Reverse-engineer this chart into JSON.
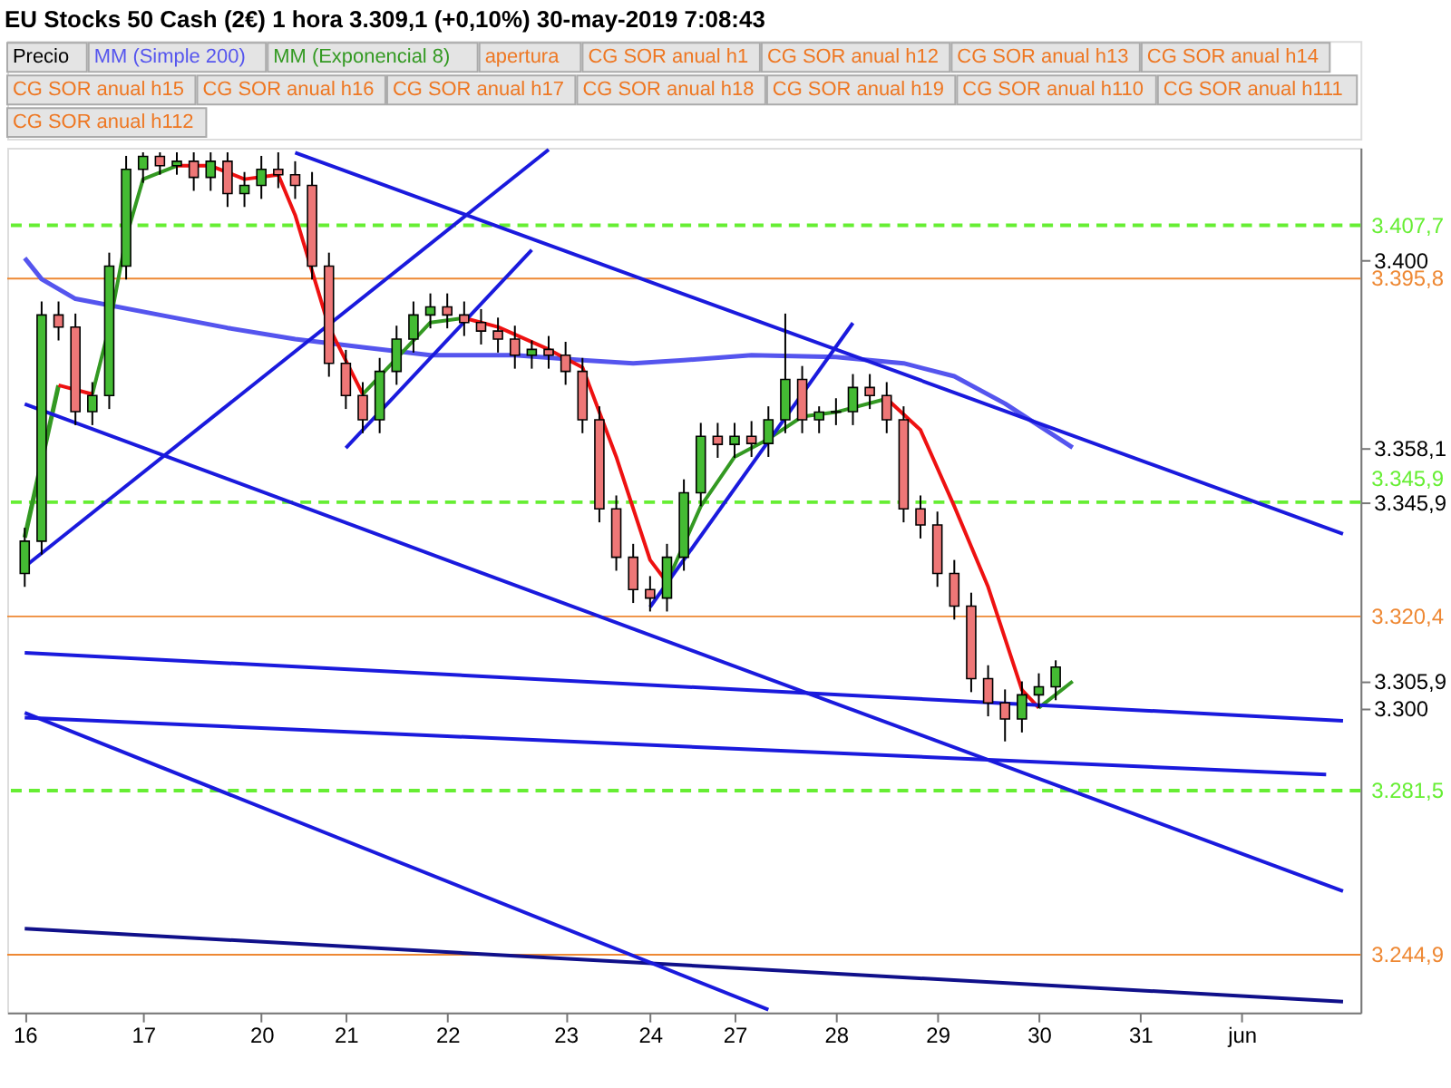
{
  "chart_data": {
    "type": "candlestick",
    "title": "EU Stocks 50 Cash (2€)   1 hora   3.309,1 (+0,10%)   30-may-2019 7:08:43",
    "ylim": [
      3232,
      3425
    ],
    "yticks": [
      {
        "value": 3400,
        "label": "3.400"
      },
      {
        "value": 3358.1,
        "label": "3.358,1"
      },
      {
        "value": 3345.9,
        "label": "3.345,9"
      },
      {
        "value": 3305.9,
        "label": "3.305,9"
      },
      {
        "value": 3300,
        "label": "3.300"
      }
    ],
    "grid": false,
    "legend": "top",
    "categories": [
      "16",
      null,
      null,
      null,
      null,
      null,
      null,
      "17",
      null,
      null,
      null,
      null,
      null,
      null,
      "20",
      null,
      null,
      null,
      null,
      "21",
      null,
      null,
      null,
      null,
      null,
      "22",
      null,
      null,
      null,
      null,
      null,
      null,
      "23",
      null,
      null,
      null,
      null,
      "24",
      null,
      null,
      null,
      null,
      "27",
      null,
      null,
      null,
      null,
      null,
      "28",
      null,
      null,
      null,
      null,
      null,
      "29",
      null,
      null,
      null,
      null,
      null,
      "30",
      null,
      null,
      null,
      null,
      null,
      "31",
      null,
      null,
      null,
      null,
      null,
      "jun",
      null,
      null,
      null,
      null,
      null,
      null
    ],
    "ohlc": [
      [
        3330,
        3340.2,
        3327,
        3337.2
      ],
      [
        3337.2,
        3390.7,
        3334.2,
        3387.7
      ],
      [
        3387.7,
        3390.7,
        3382,
        3385
      ],
      [
        3385,
        3388,
        3363.1,
        3366.1
      ],
      [
        3366.1,
        3372.7,
        3363.1,
        3369.7
      ],
      [
        3369.7,
        3401.6,
        3366.7,
        3398.6
      ],
      [
        3398.6,
        3423.2,
        3395.6,
        3420.2
      ],
      [
        3420.2,
        3424,
        3417.2,
        3423.1
      ],
      [
        3423.1,
        3424,
        3419,
        3421
      ],
      [
        3421,
        3424,
        3419,
        3422
      ],
      [
        3422,
        3424,
        3415.4,
        3418.4
      ],
      [
        3418.4,
        3424,
        3415.4,
        3422
      ],
      [
        3422,
        3424,
        3411.8,
        3414.8
      ],
      [
        3414.8,
        3419.6,
        3411.8,
        3416.6
      ],
      [
        3416.6,
        3423.2,
        3413.6,
        3420.2
      ],
      [
        3420.2,
        3424,
        3416,
        3419
      ],
      [
        3419,
        3422,
        3413.6,
        3416.6
      ],
      [
        3416.6,
        3419.6,
        3395.6,
        3398.6
      ],
      [
        3398.6,
        3401.6,
        3373.9,
        3376.9
      ],
      [
        3376.9,
        3379.9,
        3366.7,
        3369.7
      ],
      [
        3369.7,
        3372.7,
        3361.3,
        3364.3
      ],
      [
        3364.3,
        3378.1,
        3361.3,
        3375.1
      ],
      [
        3375.1,
        3385.3,
        3372.1,
        3382.3
      ],
      [
        3382.3,
        3390.7,
        3379.3,
        3387.7
      ],
      [
        3387.7,
        3392.5,
        3384.7,
        3389.5
      ],
      [
        3389.5,
        3392.5,
        3384.7,
        3387.7
      ],
      [
        3387.7,
        3390.7,
        3383,
        3386
      ],
      [
        3386,
        3389,
        3381.1,
        3384.1
      ],
      [
        3384.1,
        3387.1,
        3379.3,
        3382.3
      ],
      [
        3382.3,
        3385.3,
        3375.7,
        3378.7
      ],
      [
        3378.7,
        3382,
        3375.7,
        3380
      ],
      [
        3380,
        3383,
        3375.7,
        3378.7
      ],
      [
        3378.7,
        3381.7,
        3372.1,
        3375.1
      ],
      [
        3375.1,
        3378.1,
        3361.3,
        3364.3
      ],
      [
        3364.3,
        3367.3,
        3341.4,
        3344.4
      ],
      [
        3344.4,
        3347.4,
        3330.6,
        3333.6
      ],
      [
        3333.6,
        3336.6,
        3323.4,
        3326.4
      ],
      [
        3326.4,
        3329.4,
        3321.5,
        3324.5
      ],
      [
        3324.5,
        3336.6,
        3321.5,
        3333.6
      ],
      [
        3333.6,
        3351,
        3330.6,
        3348
      ],
      [
        3348,
        3363.6,
        3345,
        3360.6
      ],
      [
        3360.6,
        3363.6,
        3355.8,
        3358.8
      ],
      [
        3358.8,
        3363.6,
        3355.8,
        3360.6
      ],
      [
        3360.6,
        3364,
        3356,
        3359
      ],
      [
        3359,
        3367.3,
        3356,
        3364.3
      ],
      [
        3364.3,
        3388,
        3361.3,
        3373.3
      ],
      [
        3373.3,
        3376.3,
        3361.3,
        3364.3
      ],
      [
        3364.3,
        3367.3,
        3361.3,
        3366
      ],
      [
        3366,
        3369.1,
        3363.1,
        3366.1
      ],
      [
        3366.1,
        3374.5,
        3363.1,
        3371.5
      ],
      [
        3371.5,
        3374.5,
        3366.7,
        3369.7
      ],
      [
        3369.7,
        3372.7,
        3361.3,
        3364.3
      ],
      [
        3364.3,
        3367.3,
        3341.4,
        3344.4
      ],
      [
        3344.4,
        3347.4,
        3337.8,
        3340.8
      ],
      [
        3340.8,
        3343.8,
        3327,
        3330
      ],
      [
        3330,
        3333,
        3319.7,
        3322.7
      ],
      [
        3322.7,
        3325.7,
        3303.5,
        3306.5
      ],
      [
        3306.5,
        3309.5,
        3298.1,
        3301.1
      ],
      [
        3301.1,
        3304.1,
        3292.5,
        3297.5
      ],
      [
        3297.5,
        3305.9,
        3294.5,
        3302.9
      ],
      [
        3302.9,
        3307.7,
        3299.9,
        3304.7
      ],
      [
        3304.7,
        3310.6,
        3301.7,
        3309.1
      ],
      null,
      null,
      null,
      null,
      null,
      null,
      null,
      null,
      null,
      null,
      null,
      null,
      null,
      null,
      null,
      null,
      null
    ],
    "series": [
      {
        "name": "MM (Simple 200)",
        "type": "line",
        "color": "#5555ee",
        "values": [
          3400.4,
          3395.7,
          null,
          3391.3,
          null,
          null,
          null,
          null,
          3387.7,
          null,
          null,
          null,
          3384.8,
          null,
          null,
          null,
          3382.3,
          null,
          null,
          null,
          3380.5,
          null,
          null,
          null,
          3378.7,
          null,
          null,
          null,
          null,
          3378.7,
          null,
          null,
          null,
          3377.6,
          null,
          null,
          3376.9,
          null,
          null,
          3377.6,
          null,
          null,
          null,
          3378.7,
          null,
          null,
          null,
          null,
          3378.3,
          null,
          null,
          null,
          3376.9,
          null,
          null,
          3374.0,
          null,
          null,
          3367.9,
          null,
          null,
          null,
          3358.1,
          null,
          null,
          null,
          null,
          null,
          null,
          null,
          null,
          null,
          null,
          null,
          null,
          null,
          null,
          null,
          null
        ]
      },
      {
        "name": "MM (Exponencial 8)",
        "type": "line",
        "color": "#339922",
        "values": [
          3338,
          3355,
          3372,
          null,
          null,
          null,
          null,
          null,
          null,
          null,
          null,
          null,
          null,
          null,
          null,
          null,
          null,
          null,
          null,
          null,
          null,
          null,
          null,
          null,
          null,
          null,
          null,
          null,
          null,
          null,
          null,
          null,
          null,
          null,
          null,
          null,
          null,
          null,
          null,
          null,
          null,
          null,
          null,
          null,
          null,
          null,
          null,
          null,
          null,
          null,
          null,
          null,
          null,
          null,
          null,
          null,
          null,
          null,
          null,
          null,
          null,
          null,
          null,
          null,
          null,
          null,
          null,
          null,
          null,
          null,
          null,
          null,
          null,
          null,
          null,
          null,
          null,
          null,
          null
        ]
      },
      {
        "type": "line",
        "color": "#339922",
        "values": [
          null,
          null,
          null,
          null,
          3370,
          3385,
          3405,
          3418,
          null,
          3421,
          null,
          null,
          null,
          null,
          null,
          null,
          null,
          null,
          null,
          null,
          null,
          null,
          null,
          null,
          null,
          null,
          null,
          null,
          null,
          null,
          null,
          null,
          null,
          null,
          null,
          null,
          null,
          null,
          null,
          null,
          null,
          null,
          null,
          null,
          null,
          null,
          null,
          null,
          null,
          null,
          null,
          null,
          null,
          null,
          null,
          null,
          null,
          null,
          null,
          null,
          null,
          null,
          null,
          null,
          null,
          null,
          null,
          null,
          null,
          null,
          null,
          null,
          null,
          null,
          null,
          null,
          null,
          null,
          null
        ]
      },
      {
        "type": "line",
        "color": "#339922",
        "values": [
          null,
          null,
          null,
          null,
          null,
          null,
          null,
          null,
          null,
          null,
          null,
          null,
          null,
          null,
          null,
          null,
          null,
          null,
          null,
          null,
          3370,
          null,
          3378,
          null,
          3386,
          null,
          3387,
          null,
          null,
          null,
          null,
          null,
          null,
          null,
          null,
          null,
          null,
          null,
          null,
          null,
          null,
          null,
          null,
          null,
          null,
          null,
          null,
          null,
          null,
          null,
          null,
          null,
          null,
          null,
          null,
          null,
          null,
          null,
          null,
          null,
          null,
          null,
          null,
          null,
          null,
          null,
          null,
          null,
          null,
          null,
          null,
          null,
          null,
          null,
          null,
          null,
          null,
          null,
          null
        ]
      },
      {
        "type": "line",
        "color": "#339922",
        "values": [
          null,
          null,
          null,
          null,
          null,
          null,
          null,
          null,
          null,
          null,
          null,
          null,
          null,
          null,
          null,
          null,
          null,
          null,
          null,
          null,
          null,
          null,
          null,
          null,
          null,
          null,
          null,
          null,
          null,
          null,
          null,
          null,
          null,
          null,
          null,
          null,
          null,
          null,
          3328,
          null,
          3345,
          null,
          3356,
          null,
          3360,
          null,
          3365,
          null,
          3366,
          null,
          null,
          3369,
          null,
          null,
          null,
          null,
          null,
          null,
          null,
          null,
          null,
          null,
          null,
          null,
          null,
          null,
          null,
          null,
          null,
          null,
          null,
          null,
          null,
          null,
          null,
          null,
          null,
          null,
          null
        ]
      },
      {
        "type": "line",
        "color": "#339922",
        "values": [
          null,
          null,
          null,
          null,
          null,
          null,
          null,
          null,
          null,
          null,
          null,
          null,
          null,
          null,
          null,
          null,
          null,
          null,
          null,
          null,
          null,
          null,
          null,
          null,
          null,
          null,
          null,
          null,
          null,
          null,
          null,
          null,
          null,
          null,
          null,
          null,
          null,
          null,
          null,
          null,
          null,
          null,
          null,
          null,
          null,
          null,
          null,
          null,
          null,
          null,
          null,
          null,
          null,
          null,
          null,
          null,
          null,
          null,
          null,
          null,
          3300,
          null,
          3305.9,
          null,
          null,
          null,
          null,
          null,
          null,
          null,
          null,
          null,
          null,
          null,
          null,
          null,
          null,
          null,
          null
        ]
      },
      {
        "type": "line",
        "color": "#ee1111",
        "values": [
          null,
          null,
          3372,
          null,
          3370,
          null,
          null,
          null,
          null,
          null,
          null,
          null,
          null,
          null,
          null,
          null,
          null,
          null,
          null,
          null,
          null,
          null,
          null,
          null,
          null,
          null,
          null,
          null,
          null,
          null,
          null,
          null,
          null,
          null,
          null,
          null,
          null,
          null,
          null,
          null,
          null,
          null,
          null,
          null,
          null,
          null,
          null,
          null,
          null,
          null,
          null,
          null,
          null,
          null,
          null,
          null,
          null,
          null,
          null,
          null,
          null,
          null,
          null,
          null,
          null,
          null,
          null,
          null,
          null,
          null,
          null,
          null,
          null,
          null,
          null,
          null,
          null,
          null,
          null
        ]
      },
      {
        "type": "line",
        "color": "#ee1111",
        "values": [
          null,
          null,
          null,
          null,
          null,
          null,
          null,
          null,
          null,
          3421,
          null,
          3421,
          null,
          3418,
          null,
          3419,
          3410,
          null,
          3385,
          null,
          3370,
          null,
          null,
          null,
          null,
          null,
          null,
          null,
          null,
          null,
          null,
          null,
          null,
          null,
          null,
          null,
          null,
          null,
          null,
          null,
          null,
          null,
          null,
          null,
          null,
          null,
          null,
          null,
          null,
          null,
          null,
          null,
          null,
          null,
          null,
          null,
          null,
          null,
          null,
          null,
          null,
          null,
          null,
          null,
          null,
          null,
          null,
          null,
          null,
          null,
          null,
          null,
          null,
          null,
          null,
          null,
          null,
          null,
          null
        ]
      },
      {
        "type": "line",
        "color": "#ee1111",
        "values": [
          null,
          null,
          null,
          null,
          null,
          null,
          null,
          null,
          null,
          null,
          null,
          null,
          null,
          null,
          null,
          null,
          null,
          null,
          null,
          null,
          null,
          null,
          null,
          null,
          null,
          null,
          3387,
          null,
          3385,
          null,
          null,
          3380,
          null,
          3376,
          null,
          3356,
          null,
          3333,
          3328,
          null,
          null,
          null,
          null,
          null,
          null,
          null,
          null,
          null,
          null,
          null,
          null,
          null,
          null,
          null,
          null,
          null,
          null,
          null,
          null,
          null,
          null,
          null,
          null,
          null,
          null,
          null,
          null,
          null,
          null,
          null,
          null,
          null,
          null,
          null,
          null,
          null,
          null,
          null,
          null
        ]
      },
      {
        "type": "line",
        "color": "#ee1111",
        "values": [
          null,
          null,
          null,
          null,
          null,
          null,
          null,
          null,
          null,
          null,
          null,
          null,
          null,
          null,
          null,
          null,
          null,
          null,
          null,
          null,
          null,
          null,
          null,
          null,
          null,
          null,
          null,
          null,
          null,
          null,
          null,
          null,
          null,
          null,
          null,
          null,
          null,
          null,
          null,
          null,
          null,
          null,
          null,
          null,
          null,
          null,
          null,
          null,
          null,
          null,
          null,
          3369,
          null,
          3362,
          null,
          3345,
          null,
          3327,
          null,
          3304,
          3300,
          null,
          null,
          null,
          null,
          null,
          null,
          null,
          null,
          null,
          null,
          null,
          null,
          null,
          null,
          null,
          null,
          null,
          null
        ]
      },
      {
        "type": "line",
        "color": "#1a1add",
        "values": [
          3367.8,
          null,
          null,
          null,
          null,
          null,
          null,
          null,
          null,
          null,
          null,
          null,
          null,
          null,
          null,
          null,
          null,
          null,
          null,
          null,
          null,
          null,
          null,
          null,
          null,
          null,
          null,
          null,
          null,
          null,
          null,
          null,
          null,
          null,
          null,
          null,
          null,
          null,
          null,
          null,
          null,
          null,
          null,
          null,
          null,
          null,
          null,
          null,
          null,
          null,
          null,
          null,
          null,
          null,
          null,
          null,
          null,
          null,
          null,
          null,
          null,
          null,
          null,
          null,
          null,
          null,
          null,
          null,
          null,
          null,
          null,
          null,
          null,
          null,
          null,
          null,
          null,
          null,
          3259.1
        ]
      },
      {
        "type": "line",
        "color": "#1a1add",
        "values": [
          null,
          null,
          null,
          null,
          null,
          null,
          null,
          null,
          null,
          null,
          null,
          null,
          null,
          null,
          null,
          null,
          3423.9,
          null,
          null,
          null,
          null,
          null,
          null,
          null,
          null,
          null,
          null,
          null,
          null,
          null,
          null,
          null,
          null,
          null,
          null,
          null,
          null,
          null,
          null,
          null,
          null,
          null,
          null,
          null,
          null,
          null,
          null,
          null,
          null,
          null,
          null,
          null,
          null,
          null,
          null,
          null,
          null,
          null,
          null,
          null,
          null,
          null,
          null,
          null,
          null,
          null,
          null,
          null,
          null,
          null,
          null,
          null,
          null,
          null,
          null,
          null,
          null,
          null,
          3338.8
        ]
      },
      {
        "type": "line",
        "color": "#1a1add",
        "values": [
          3312.3,
          null,
          null,
          null,
          null,
          null,
          null,
          null,
          null,
          null,
          null,
          null,
          null,
          null,
          null,
          null,
          null,
          null,
          null,
          null,
          null,
          null,
          null,
          null,
          null,
          null,
          null,
          null,
          null,
          null,
          null,
          null,
          null,
          null,
          null,
          null,
          null,
          null,
          null,
          null,
          null,
          null,
          null,
          null,
          null,
          null,
          null,
          null,
          null,
          null,
          null,
          null,
          null,
          null,
          null,
          null,
          null,
          null,
          null,
          null,
          null,
          null,
          null,
          null,
          null,
          null,
          null,
          null,
          null,
          null,
          null,
          null,
          null,
          null,
          null,
          null,
          null,
          null,
          3297.1
        ]
      },
      {
        "type": "line",
        "color": "#1a1add",
        "values": [
          3297.8,
          null,
          null,
          null,
          null,
          null,
          null,
          null,
          null,
          null,
          null,
          null,
          null,
          null,
          null,
          null,
          null,
          null,
          null,
          null,
          null,
          null,
          null,
          null,
          null,
          null,
          null,
          null,
          null,
          null,
          null,
          null,
          null,
          null,
          null,
          null,
          null,
          null,
          null,
          null,
          null,
          null,
          null,
          null,
          null,
          null,
          null,
          null,
          null,
          null,
          null,
          null,
          null,
          null,
          null,
          null,
          null,
          null,
          null,
          null,
          null,
          null,
          null,
          null,
          null,
          null,
          null,
          null,
          null,
          null,
          null,
          null,
          null,
          null,
          null,
          null,
          null,
          3285.1,
          null
        ]
      },
      {
        "type": "line",
        "color": "#10108a",
        "values": [
          3250.7,
          null,
          null,
          null,
          null,
          null,
          null,
          null,
          null,
          null,
          null,
          null,
          null,
          null,
          null,
          null,
          null,
          null,
          null,
          null,
          null,
          null,
          null,
          null,
          null,
          null,
          null,
          null,
          null,
          null,
          null,
          null,
          null,
          null,
          null,
          null,
          null,
          null,
          null,
          null,
          null,
          null,
          null,
          null,
          null,
          null,
          null,
          null,
          null,
          null,
          null,
          null,
          null,
          null,
          null,
          null,
          null,
          null,
          null,
          null,
          null,
          null,
          null,
          null,
          null,
          null,
          null,
          null,
          null,
          null,
          null,
          null,
          null,
          null,
          null,
          null,
          null,
          null,
          3234.4
        ]
      },
      {
        "type": "line",
        "color": "#1a1add",
        "values": [
          3298.9,
          null,
          null,
          null,
          null,
          null,
          null,
          null,
          null,
          null,
          null,
          null,
          null,
          null,
          null,
          null,
          null,
          null,
          null,
          null,
          null,
          null,
          null,
          null,
          null,
          null,
          null,
          null,
          null,
          null,
          null,
          null,
          null,
          null,
          null,
          null,
          null,
          null,
          null,
          null,
          null,
          null,
          null,
          null,
          3232.6,
          null,
          null,
          null,
          null,
          null,
          null,
          null,
          null,
          null,
          null,
          null,
          null,
          null,
          null,
          null,
          null,
          null,
          null,
          null,
          null,
          null,
          null,
          null,
          null,
          null,
          null,
          null,
          null,
          null,
          null,
          null,
          null,
          null,
          null
        ]
      },
      {
        "type": "line",
        "color": "#1a1add",
        "values": [
          3331.5,
          null,
          null,
          null,
          null,
          null,
          null,
          null,
          null,
          null,
          null,
          null,
          null,
          null,
          null,
          null,
          null,
          null,
          null,
          null,
          null,
          null,
          null,
          null,
          null,
          null,
          null,
          null,
          null,
          null,
          null,
          3424.6,
          null,
          null,
          null,
          null,
          null,
          null,
          null,
          null,
          null,
          null,
          null,
          null,
          null,
          null,
          null,
          null,
          null,
          null,
          null,
          null,
          null,
          null,
          null,
          null,
          null,
          null,
          null,
          null,
          null,
          null,
          null,
          null,
          null,
          null,
          null,
          null,
          null,
          null,
          null,
          null,
          null,
          null,
          null,
          null,
          null,
          null,
          null
        ]
      },
      {
        "type": "line",
        "color": "#1a1add",
        "values": [
          null,
          null,
          null,
          null,
          null,
          null,
          null,
          null,
          null,
          null,
          null,
          null,
          null,
          null,
          null,
          null,
          null,
          null,
          null,
          3358,
          null,
          null,
          null,
          null,
          null,
          null,
          null,
          null,
          null,
          null,
          3402.2,
          null,
          null,
          null,
          null,
          null,
          null,
          null,
          null,
          null,
          null,
          null,
          null,
          null,
          null,
          null,
          null,
          null,
          null,
          null,
          null,
          null,
          null,
          null,
          null,
          null,
          null,
          null,
          null,
          null,
          null,
          null,
          null,
          null,
          null,
          null,
          null,
          null,
          null,
          null,
          null,
          null,
          null,
          null,
          null,
          null,
          null,
          null,
          null
        ]
      },
      {
        "type": "line",
        "color": "#1a1add",
        "values": [
          null,
          null,
          null,
          null,
          null,
          null,
          null,
          null,
          null,
          null,
          null,
          null,
          null,
          null,
          null,
          null,
          null,
          null,
          null,
          null,
          null,
          null,
          null,
          null,
          null,
          null,
          null,
          null,
          null,
          null,
          null,
          null,
          null,
          null,
          null,
          null,
          null,
          3322.5,
          null,
          null,
          null,
          null,
          null,
          null,
          null,
          null,
          null,
          null,
          null,
          3385.9,
          null,
          null,
          null,
          null,
          null,
          null,
          null,
          null,
          null,
          null,
          null,
          null,
          null,
          null,
          null,
          null,
          null,
          null,
          null,
          null,
          null,
          null,
          null,
          null,
          null,
          null,
          null,
          null,
          null
        ]
      }
    ],
    "ref_lines": [
      {
        "axis": "y",
        "value": 3407.7,
        "label": "3.407,7",
        "color": "#66ee33",
        "line_style": "dashed"
      },
      {
        "axis": "y",
        "value": 3395.8,
        "label": "3.395,8",
        "color": "#ee8833",
        "line_style": "solid"
      },
      {
        "axis": "y",
        "value": 3345.9,
        "label": "3.345,9",
        "color": "#66ee33",
        "line_style": "dashed"
      },
      {
        "axis": "y",
        "value": 3320.4,
        "label": "3.320,4",
        "color": "#ee8833",
        "line_style": "solid"
      },
      {
        "axis": "y",
        "value": 3281.5,
        "label": "3.281,5",
        "color": "#66ee33",
        "line_style": "dashed"
      },
      {
        "axis": "y",
        "value": 3244.9,
        "label": "3.244,9",
        "color": "#ee8833",
        "line_style": "solid"
      }
    ],
    "annotations": [
      "Precio",
      "apertura",
      "CG SOR anual h1",
      "CG SOR anual h12",
      "CG SOR anual h13",
      "CG SOR anual h14",
      "CG SOR anual h15",
      "CG SOR anual h16",
      "CG SOR anual h17",
      "CG SOR anual h18",
      "CG SOR anual h19",
      "CG SOR anual h110",
      "CG SOR anual h111",
      "CG SOR anual h112"
    ]
  }
}
